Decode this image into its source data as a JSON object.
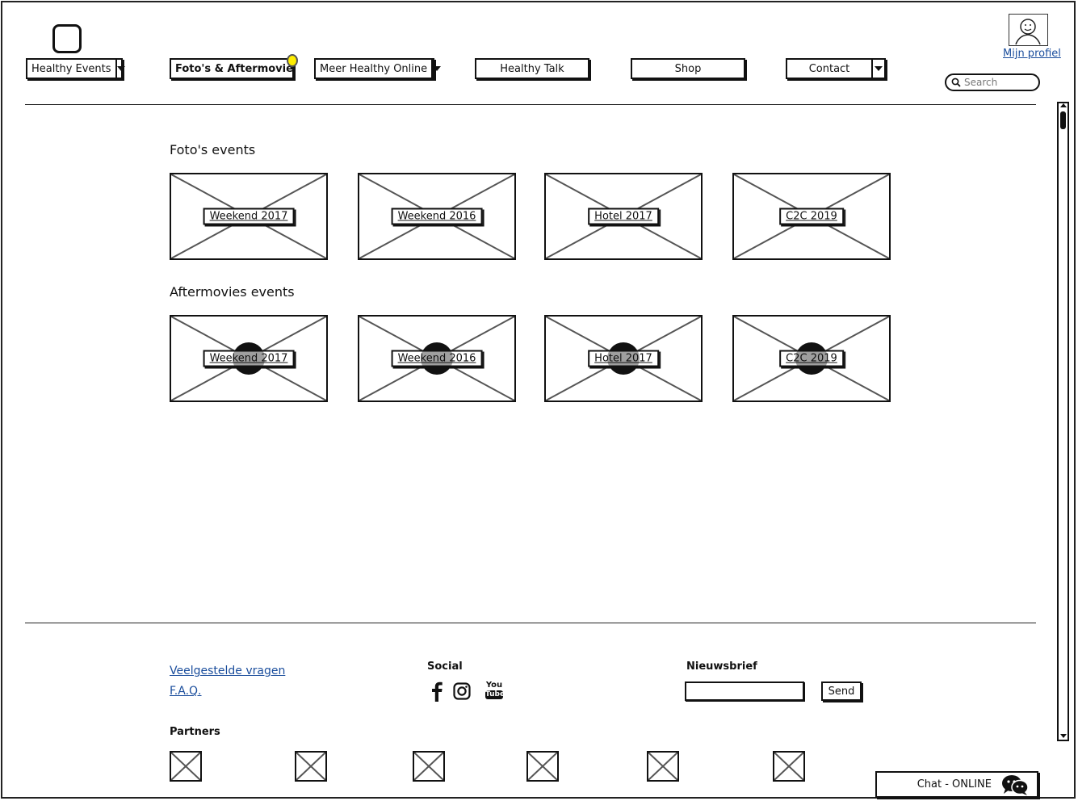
{
  "header": {
    "nav": [
      {
        "label": "Healthy Events",
        "dropdown": true
      },
      {
        "label": "Foto's & Aftermovie",
        "dropdown": false,
        "active": true
      },
      {
        "label": "Meer Healthy Online",
        "dropdown": true
      },
      {
        "label": "Healthy Talk",
        "dropdown": false
      },
      {
        "label": "Shop",
        "dropdown": false
      },
      {
        "label": "Contact",
        "dropdown": true
      }
    ],
    "profile_label": "Mijn profiel",
    "search_placeholder": "Search"
  },
  "main": {
    "photos_title": "Foto's events",
    "photos": [
      "Weekend 2017",
      "Weekend 2016",
      "Hotel 2017",
      "C2C 2019"
    ],
    "movies_title": "Aftermovies events",
    "movies": [
      "Weekend 2017",
      "Weekend 2016",
      "Hotel 2017",
      "C2C 2019"
    ]
  },
  "footer": {
    "links": [
      "Veelgestelde vragen",
      "F.A.Q."
    ],
    "social_title": "Social",
    "social_icons": [
      "facebook-icon",
      "instagram-icon",
      "youtube-icon"
    ],
    "youtube_text": {
      "top": "You",
      "bottom": "Tube"
    },
    "newsletter_title": "Nieuwsbrief",
    "send_label": "Send",
    "partners_title": "Partners",
    "partner_count": 6
  },
  "chat": {
    "label": "Chat - ONLINE"
  }
}
